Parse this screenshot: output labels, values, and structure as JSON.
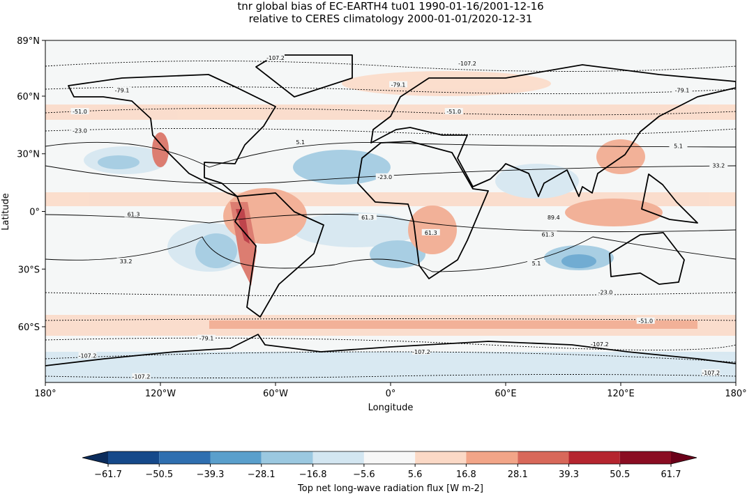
{
  "header": {
    "title": "tnr global bias of EC-EARTH4 tu01 1990-01-16/2001-12-16",
    "subtitle": "relative to CERES climatology 2000-01-01/2020-12-31"
  },
  "map": {
    "xlabel": "Longitude",
    "ylabel": "Latitude",
    "xlim": [
      -180,
      180
    ],
    "ylim": [
      -89,
      89
    ],
    "xticks": [
      {
        "value": -180,
        "label": "180°"
      },
      {
        "value": -120,
        "label": "120°W"
      },
      {
        "value": -60,
        "label": "60°W"
      },
      {
        "value": 0,
        "label": "0°"
      },
      {
        "value": 60,
        "label": "60°E"
      },
      {
        "value": 120,
        "label": "120°E"
      },
      {
        "value": 180,
        "label": "180°"
      }
    ],
    "yticks": [
      {
        "value": 89,
        "label": "89°N"
      },
      {
        "value": 60,
        "label": "60°N"
      },
      {
        "value": 30,
        "label": "30°N"
      },
      {
        "value": 0,
        "label": "0°"
      },
      {
        "value": -30,
        "label": "30°S"
      },
      {
        "value": -60,
        "label": "60°S"
      }
    ],
    "contour_labels": [
      {
        "label": "-107.2",
        "lon": -60,
        "lat": 80
      },
      {
        "label": "-107.2",
        "lon": 40,
        "lat": 77
      },
      {
        "label": "-79.1",
        "lon": -140,
        "lat": 63
      },
      {
        "label": "-79.1",
        "lon": 4,
        "lat": 66
      },
      {
        "label": "-79.1",
        "lon": 152,
        "lat": 63
      },
      {
        "label": "-51.0",
        "lon": -162,
        "lat": 52
      },
      {
        "label": "-51.0",
        "lon": 33,
        "lat": 52
      },
      {
        "label": "-23.0",
        "lon": -162,
        "lat": 42
      },
      {
        "label": "5.1",
        "lon": -47,
        "lat": 36
      },
      {
        "label": "5.1",
        "lon": 150,
        "lat": 34
      },
      {
        "label": "33.2",
        "lon": 171,
        "lat": 24
      },
      {
        "label": "-23.0",
        "lon": -3,
        "lat": 18
      },
      {
        "label": "61.3",
        "lon": -134,
        "lat": -1.5
      },
      {
        "label": "61.3",
        "lon": -12,
        "lat": -3
      },
      {
        "label": "61.3",
        "lon": 21,
        "lat": -11
      },
      {
        "label": "61.3",
        "lon": 82,
        "lat": -12
      },
      {
        "label": "89.4",
        "lon": 85,
        "lat": -3
      },
      {
        "label": "33.2",
        "lon": -138,
        "lat": -26
      },
      {
        "label": "5.1",
        "lon": 76,
        "lat": -27
      },
      {
        "label": "-23.0",
        "lon": 112,
        "lat": -42
      },
      {
        "label": "-51.0",
        "lon": 133,
        "lat": -57
      },
      {
        "label": "-79.1",
        "lon": -96,
        "lat": -66
      },
      {
        "label": "-107.2",
        "lon": 16,
        "lat": -73
      },
      {
        "label": "-107.2",
        "lon": 109,
        "lat": -69
      },
      {
        "label": "-107.2",
        "lon": -158,
        "lat": -75
      },
      {
        "label": "-107.2",
        "lon": -130,
        "lat": -86
      },
      {
        "label": "-107.2",
        "lon": 167,
        "lat": -84
      }
    ]
  },
  "colorbar": {
    "label": "Top net long-wave radiation flux [W m-2]",
    "lim": [
      -61.7,
      61.7
    ],
    "ticks": [
      {
        "value": -61.7,
        "label": "−61.7"
      },
      {
        "value": -50.5,
        "label": "−50.5"
      },
      {
        "value": -39.3,
        "label": "−39.3"
      },
      {
        "value": -28.1,
        "label": "−28.1"
      },
      {
        "value": -16.8,
        "label": "−16.8"
      },
      {
        "value": -5.6,
        "label": "−5.6"
      },
      5.6,
      16.8,
      28.1,
      39.3,
      50.5,
      61.7
    ],
    "colors": [
      "#16498a",
      "#2f6fb0",
      "#5a9fcc",
      "#9bc8e0",
      "#d3e6f1",
      "#f7f7f7",
      "#fbd9c6",
      "#f2a588",
      "#d8685a",
      "#b5252f",
      "#8a0d22"
    ],
    "extend_colors": [
      "#0b2c5c",
      "#6a0019"
    ]
  }
}
